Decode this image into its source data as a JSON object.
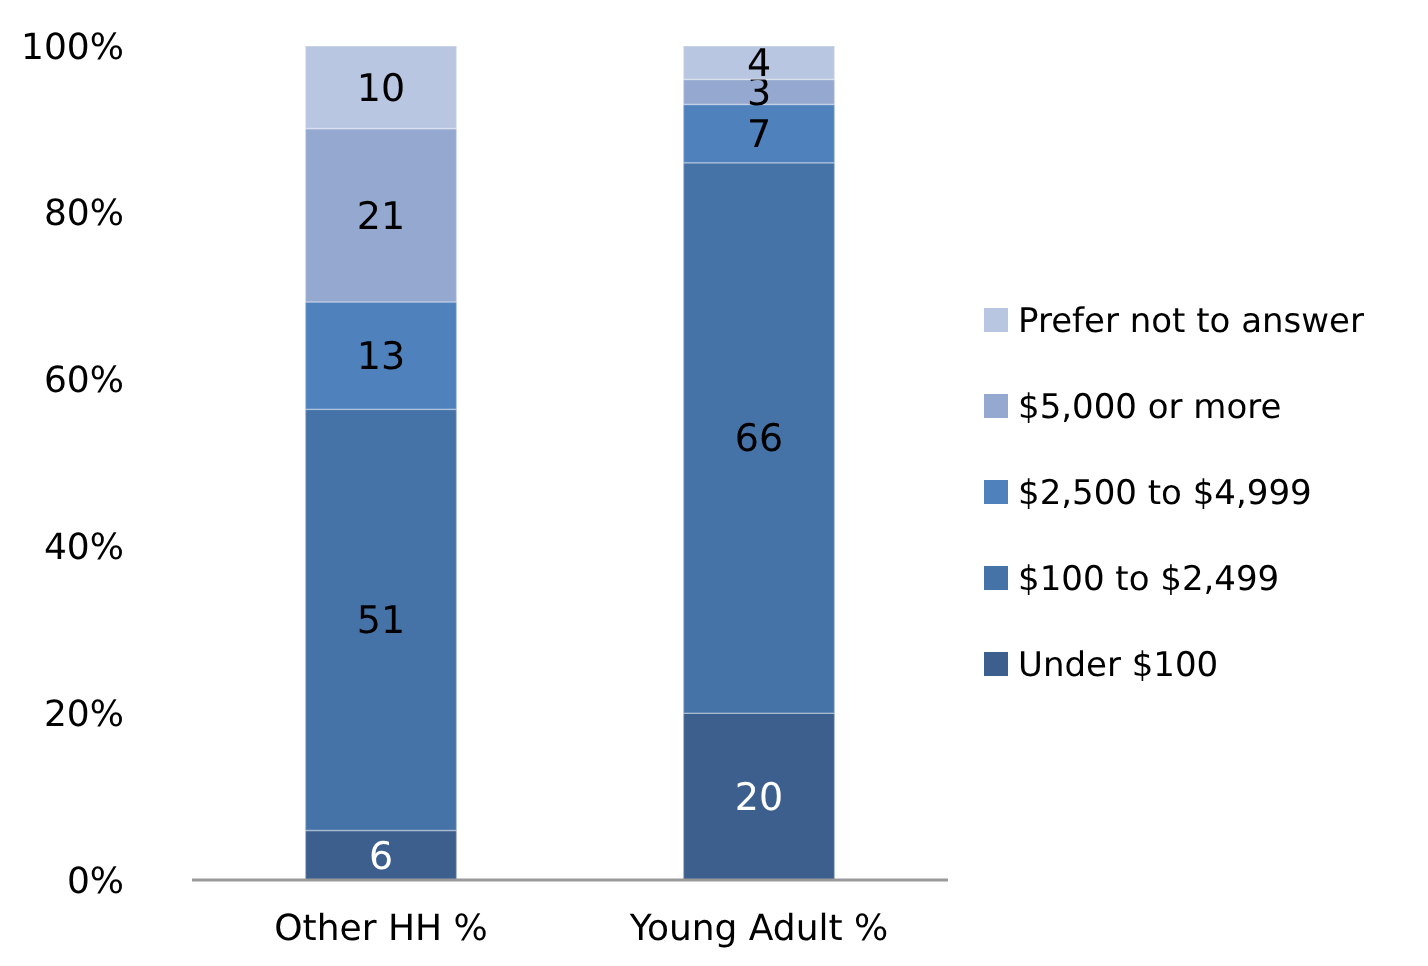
{
  "chart_data": {
    "type": "bar",
    "stacked": true,
    "categories": [
      "Other HH %",
      "Young Adult %"
    ],
    "series": [
      {
        "name": "Under $100",
        "color": "#3c5f8e",
        "values": [
          5.94,
          20
        ],
        "value_labels": [
          "6",
          "20"
        ]
      },
      {
        "name": "$100 to $2,499",
        "color": "#4673a7",
        "values": [
          50.5,
          66
        ],
        "value_labels": [
          "51",
          "66"
        ]
      },
      {
        "name": "$2,500 to $4,999",
        "color": "#4f81bd",
        "values": [
          12.87,
          7
        ],
        "value_labels": [
          "13",
          "7"
        ]
      },
      {
        "name": "$5,000 or more",
        "color": "#95a9d0",
        "values": [
          20.79,
          3
        ],
        "value_labels": [
          "21",
          "3"
        ]
      },
      {
        "name": "Prefer not to answer",
        "color": "#b9c6e1",
        "values": [
          9.9,
          4
        ],
        "value_labels": [
          "10",
          "4"
        ]
      }
    ],
    "ylim": [
      0,
      100
    ],
    "yticks": [
      {
        "value": 0,
        "label": "0%"
      },
      {
        "value": 20,
        "label": "20%"
      },
      {
        "value": 40,
        "label": "40%"
      },
      {
        "value": 60,
        "label": "60%"
      },
      {
        "value": 80,
        "label": "80%"
      },
      {
        "value": 100,
        "label": "100%"
      }
    ],
    "grid": false,
    "legend": "right"
  }
}
